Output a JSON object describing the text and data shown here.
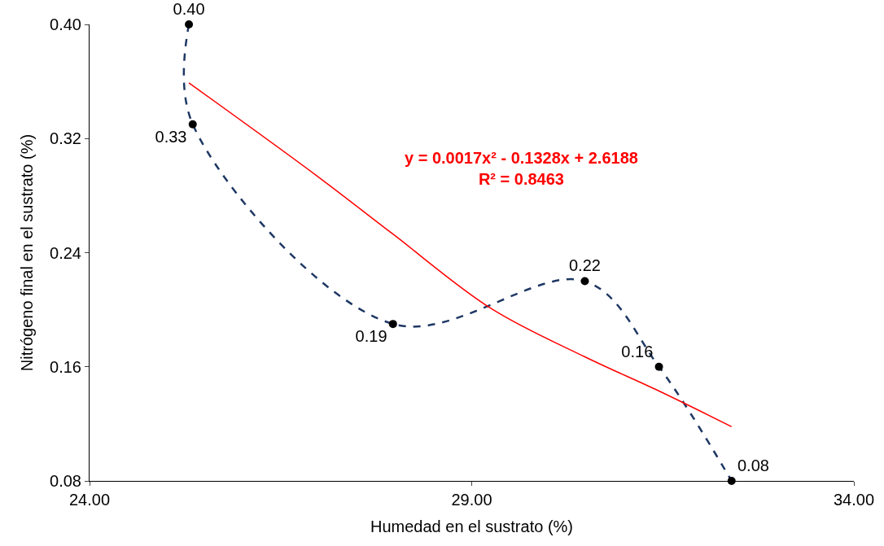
{
  "chart_data": {
    "type": "line",
    "xlabel": "Humedad en el sustrato (%)",
    "ylabel": "Nitrógeno final en el sustrato (%)",
    "xlim": [
      24,
      34
    ],
    "ylim": [
      0.08,
      0.4
    ],
    "xticks": [
      {
        "value": 24,
        "label": "24.00"
      },
      {
        "value": 29,
        "label": "29.00"
      },
      {
        "value": 34,
        "label": "34.00"
      }
    ],
    "yticks": [
      {
        "value": 0.08,
        "label": "0.08"
      },
      {
        "value": 0.16,
        "label": "0.16"
      },
      {
        "value": 0.24,
        "label": "0.24"
      },
      {
        "value": 0.32,
        "label": "0.32"
      },
      {
        "value": 0.4,
        "label": "0.40"
      }
    ],
    "series": [
      {
        "color": "#1f3864",
        "line_style": "dashed",
        "marker": "circle",
        "x": [
          25.3,
          25.35,
          27.97,
          30.48,
          31.45,
          32.4
        ],
        "values": [
          0.4,
          0.33,
          0.19,
          0.22,
          0.16,
          0.08
        ],
        "value_labels": [
          "0.40",
          "0.33",
          "0.19",
          "0.22",
          "0.16",
          "0.08"
        ]
      },
      {
        "color": "#ff0000",
        "line_style": "solid",
        "marker": "none",
        "x": [
          25.3,
          26.97,
          27.97,
          29.25,
          30.48,
          31.45,
          32.4
        ],
        "values": [
          0.359,
          0.294,
          0.253,
          0.201,
          0.167,
          0.143,
          0.118
        ]
      }
    ],
    "annotations": [
      "y = 0.0017x² - 0.1328x + 2.6188\nR² = 0.8463"
    ]
  }
}
